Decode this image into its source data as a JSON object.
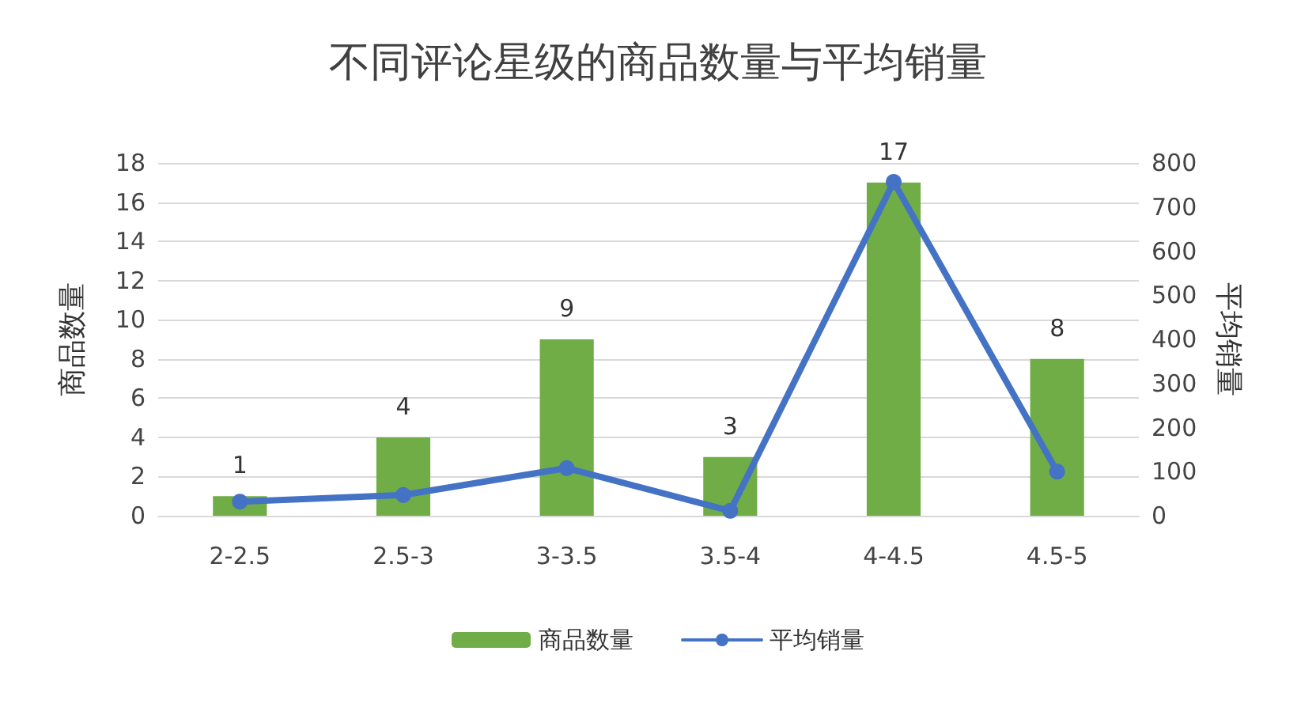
{
  "chart_data": {
    "type": "bar",
    "title": "不同评论星级的商品数量与平均销量",
    "ylabel": "商品数量",
    "y2label": "平均销量",
    "categories": [
      "2-2.5",
      "2.5-3",
      "3-3.5",
      "3.5-4",
      "4-4.5",
      "4.5-5"
    ],
    "series": [
      {
        "name": "商品数量",
        "color": "#70ad47",
        "values": [
          1,
          4,
          9,
          3,
          17,
          8
        ],
        "value_labels": [
          "1",
          "4",
          "9",
          "3",
          "17",
          "8"
        ]
      },
      {
        "name": "平均销量",
        "type": "line",
        "axis": "y2",
        "color": "#4472c4",
        "values": [
          32,
          47,
          108,
          11,
          757,
          100
        ]
      }
    ],
    "ylim": [
      0,
      18
    ],
    "yticks": [
      0,
      2,
      4,
      6,
      8,
      10,
      12,
      14,
      16,
      18
    ],
    "y2lim": [
      0,
      800
    ],
    "y2ticks": [
      0,
      100,
      200,
      300,
      400,
      500,
      600,
      700,
      800
    ],
    "grid": "y",
    "legend": "bottom",
    "marker": "circle",
    "line_style": "solid"
  }
}
